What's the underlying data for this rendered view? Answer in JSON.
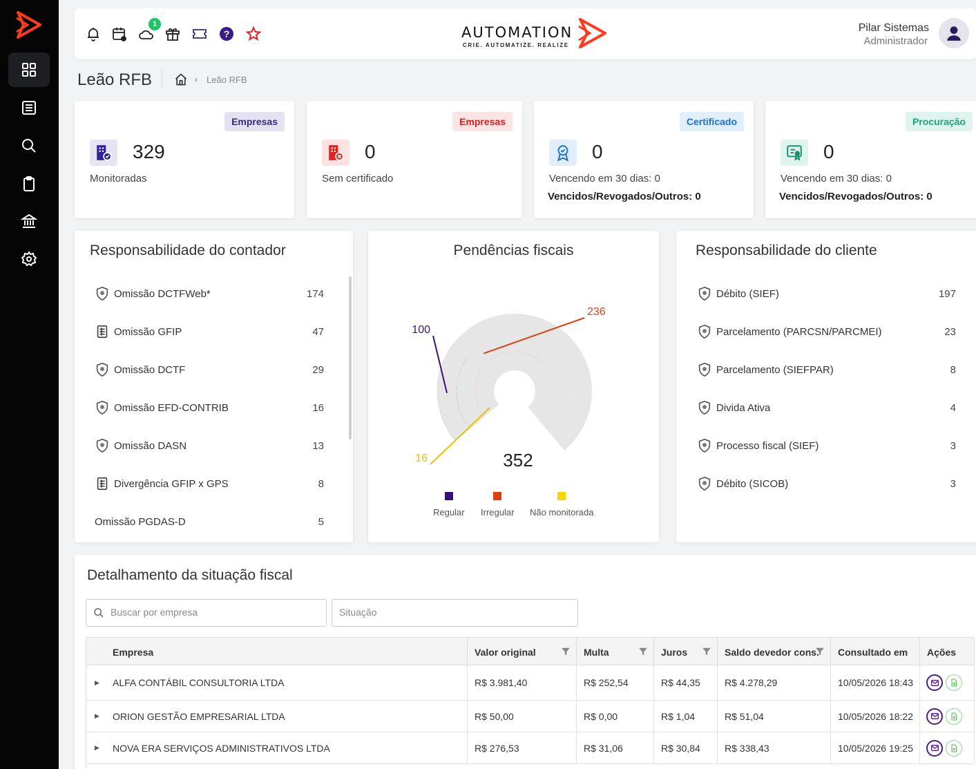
{
  "sidebar": {
    "logo": "automation-logo",
    "items": [
      {
        "name": "dashboard",
        "icon": "grid-icon",
        "active": true
      },
      {
        "name": "reports",
        "icon": "list-icon"
      },
      {
        "name": "search",
        "icon": "search-icon"
      },
      {
        "name": "clipboard",
        "icon": "clipboard-icon"
      },
      {
        "name": "bank",
        "icon": "bank-icon"
      },
      {
        "name": "settings",
        "icon": "gear-icon"
      }
    ]
  },
  "header": {
    "icons": [
      "bell-icon",
      "calendar-icon",
      "cloud-notification-icon",
      "gift-icon",
      "ticket-icon",
      "help-icon",
      "star-icon"
    ],
    "notification_count": "1",
    "brand": {
      "name": "AUTOMATION",
      "tagline": "CRIE. AUTOMATIZE. REALIZE"
    },
    "user": {
      "name": "Pilar Sistemas",
      "role": "Administrador"
    }
  },
  "page": {
    "title": "Leão RFB",
    "breadcrumb": {
      "separator": "›",
      "current": "Leão RFB"
    }
  },
  "stats": [
    {
      "pill": "Empresas",
      "value": "329",
      "label": "Monitoradas",
      "pill_bg": "#e4e2f1",
      "pill_color": "#3a2a7a",
      "icon_bg": "#e6e4f4",
      "icon_color": "#2e2596"
    },
    {
      "pill": "Empresas",
      "value": "0",
      "label": "Sem certificado",
      "pill_bg": "#fde5e5",
      "pill_color": "#d92020",
      "icon_bg": "#fde2e2",
      "icon_color": "#e02424"
    },
    {
      "pill": "Certificado",
      "value": "0",
      "label": "Vencendo em 30 dias: 0",
      "label2": "Vencidos/Revogados/Outros: 0",
      "pill_bg": "#e1eefc",
      "pill_color": "#1f6fd6",
      "icon_bg": "#e1eefc",
      "icon_color": "#1f6fd6"
    },
    {
      "pill": "Procuração",
      "value": "0",
      "label": "Vencendo em 30 dias: 0",
      "label2": "Vencidos/Revogados/Outros: 0",
      "pill_bg": "#dff4ee",
      "pill_color": "#22a07c",
      "icon_bg": "#dff4ee",
      "icon_color": "#1a8f6c"
    }
  ],
  "contador": {
    "title": "Responsabilidade do contador",
    "items": [
      {
        "icon": "shield-icon",
        "label": "Omissão DCTFWeb*",
        "value": "174"
      },
      {
        "icon": "document-icon",
        "label": "Omissão GFIP",
        "value": "47"
      },
      {
        "icon": "shield-icon",
        "label": "Omissão DCTF",
        "value": "29"
      },
      {
        "icon": "shield-icon",
        "label": "Omissão EFD-CONTRIB",
        "value": "16"
      },
      {
        "icon": "shield-icon",
        "label": "Omissão DASN",
        "value": "13"
      },
      {
        "icon": "document-icon",
        "label": "Divergência GFIP x GPS",
        "value": "8"
      },
      {
        "icon": "",
        "label": "Omissão PGDAS-D",
        "value": "5"
      }
    ]
  },
  "pendencias": {
    "title": "Pendências fiscais",
    "total": "352",
    "colors": {
      "regular": "#3b0f7a",
      "irregular": "#e0400f",
      "nao_monitorada": "#f5d800",
      "track": "#e6e6e6"
    }
  },
  "chart_data": {
    "type": "pie",
    "title": "Pendências fiscais",
    "total": 352,
    "series": [
      {
        "name": "Regular",
        "value": 100
      },
      {
        "name": "Irregular",
        "value": 236
      },
      {
        "name": "Não monitorada",
        "value": 16
      }
    ],
    "legend": "bottom"
  },
  "cliente": {
    "title": "Responsabilidade do cliente",
    "items": [
      {
        "label": "Débito (SIEF)",
        "value": "197"
      },
      {
        "label": "Parcelamento (PARCSN/PARCMEI)",
        "value": "23"
      },
      {
        "label": "Parcelamento (SIEFPAR)",
        "value": "8"
      },
      {
        "label": "Divida Ativa",
        "value": "4"
      },
      {
        "label": "Processo fiscal (SIEF)",
        "value": "3"
      },
      {
        "label": "Débito (SICOB)",
        "value": "3"
      }
    ]
  },
  "detalhamento": {
    "title": "Detalhamento da situação fiscal",
    "search_placeholder": "Buscar por empresa",
    "situacao_placeholder": "Situação",
    "columns": [
      "Empresa",
      "Valor original",
      "Multa",
      "Juros",
      "Saldo devedor cons.",
      "Consultado em",
      "Ações"
    ],
    "rows": [
      {
        "empresa": "ALFA CONTÁBIL CONSULTORIA LTDA",
        "valor": "R$ 3.981,40",
        "multa": "R$ 252,54",
        "juros": "R$ 44,35",
        "saldo": "R$ 4.278,29",
        "consultado": "10/05/2026 18:43"
      },
      {
        "empresa": "ORION GESTÃO EMPRESARIAL LTDA",
        "valor": "R$ 50,00",
        "multa": "R$ 0,00",
        "juros": "R$ 1,04",
        "saldo": "R$ 51,04",
        "consultado": "10/05/2026 18:22"
      },
      {
        "empresa": "NOVA ERA SERVIÇOS ADMINISTRATIVOS LTDA",
        "valor": "R$ 276,53",
        "multa": "R$ 31,06",
        "juros": "R$ 30,84",
        "saldo": "R$ 338,43",
        "consultado": "10/05/2026 19:25"
      }
    ]
  }
}
